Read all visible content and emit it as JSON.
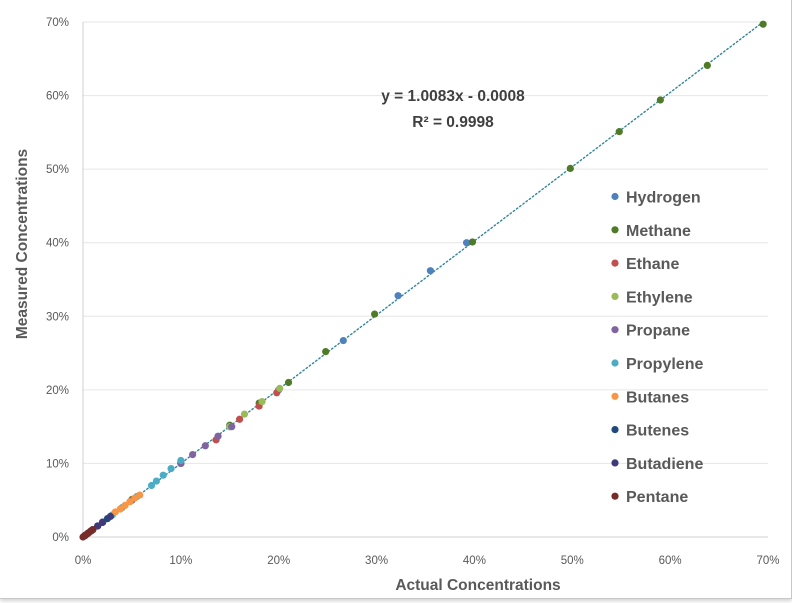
{
  "chart_data": {
    "type": "scatter",
    "xlabel": "Actual Concentrations",
    "ylabel": "Measured Concentrations",
    "xlim": [
      0,
      0.7
    ],
    "ylim": [
      0,
      0.7
    ],
    "x_ticks": [
      "0%",
      "10%",
      "20%",
      "30%",
      "40%",
      "50%",
      "60%",
      "70%"
    ],
    "y_ticks": [
      "0%",
      "10%",
      "20%",
      "30%",
      "40%",
      "50%",
      "60%",
      "70%"
    ],
    "grid": "y-major",
    "legend_position": "right",
    "trendline": {
      "type": "linear",
      "slope": 1.0083,
      "intercept": -0.0008,
      "style": "dotted",
      "color": "#31859c",
      "equation_text": "y = 1.0083x - 0.0008",
      "r2_text": "R² = 0.9998"
    },
    "series": [
      {
        "name": "Hydrogen",
        "color": "#4f81bd",
        "x": [
          0.005,
          0.01,
          0.02,
          0.05,
          0.1,
          0.15,
          0.2,
          0.266,
          0.322,
          0.355,
          0.392
        ],
        "y": [
          0.005,
          0.01,
          0.02,
          0.05,
          0.1,
          0.15,
          0.2,
          0.267,
          0.328,
          0.362,
          0.4
        ]
      },
      {
        "name": "Methane",
        "color": "#4f7a28",
        "x": [
          0.001,
          0.005,
          0.02,
          0.05,
          0.1,
          0.15,
          0.18,
          0.21,
          0.248,
          0.298,
          0.398,
          0.498,
          0.548,
          0.59,
          0.638,
          0.695
        ],
        "y": [
          0.001,
          0.005,
          0.02,
          0.051,
          0.101,
          0.152,
          0.182,
          0.21,
          0.252,
          0.303,
          0.401,
          0.501,
          0.551,
          0.594,
          0.641,
          0.697
        ]
      },
      {
        "name": "Ethane",
        "color": "#c0504d",
        "x": [
          0.002,
          0.01,
          0.05,
          0.1,
          0.136,
          0.16,
          0.18,
          0.198
        ],
        "y": [
          0.002,
          0.01,
          0.05,
          0.1,
          0.132,
          0.16,
          0.178,
          0.196
        ]
      },
      {
        "name": "Ethylene",
        "color": "#9bbb59",
        "x": [
          0.002,
          0.01,
          0.05,
          0.1,
          0.15,
          0.165,
          0.183,
          0.201
        ],
        "y": [
          0.002,
          0.01,
          0.05,
          0.1,
          0.15,
          0.167,
          0.184,
          0.202
        ]
      },
      {
        "name": "Propane",
        "color": "#8064a2",
        "x": [
          0.002,
          0.01,
          0.02,
          0.05,
          0.1,
          0.112,
          0.125,
          0.138,
          0.152
        ],
        "y": [
          0.002,
          0.01,
          0.02,
          0.05,
          0.1,
          0.112,
          0.124,
          0.137,
          0.15
        ]
      },
      {
        "name": "Propylene",
        "color": "#4bacc6",
        "x": [
          0.002,
          0.01,
          0.03,
          0.04,
          0.055,
          0.07,
          0.075,
          0.082,
          0.09,
          0.1
        ],
        "y": [
          0.002,
          0.01,
          0.03,
          0.04,
          0.055,
          0.07,
          0.076,
          0.084,
          0.093,
          0.104
        ]
      },
      {
        "name": "Butanes",
        "color": "#f79646",
        "x": [
          0.002,
          0.01,
          0.033,
          0.038,
          0.043,
          0.048,
          0.053,
          0.058
        ],
        "y": [
          0.002,
          0.01,
          0.034,
          0.038,
          0.043,
          0.048,
          0.053,
          0.057
        ]
      },
      {
        "name": "Butenes",
        "color": "#1f497d",
        "x": [
          0.002,
          0.008,
          0.015,
          0.02,
          0.025
        ],
        "y": [
          0.002,
          0.008,
          0.015,
          0.02,
          0.025
        ]
      },
      {
        "name": "Butadiene",
        "color": "#403a7a",
        "x": [
          0.002,
          0.008,
          0.015,
          0.02,
          0.028
        ],
        "y": [
          0.002,
          0.008,
          0.015,
          0.02,
          0.028
        ]
      },
      {
        "name": "Pentane",
        "color": "#772c2a",
        "x": [
          0.0,
          0.002,
          0.004,
          0.006,
          0.008,
          0.01
        ],
        "y": [
          0.0,
          0.002,
          0.004,
          0.006,
          0.008,
          0.01
        ]
      }
    ]
  }
}
